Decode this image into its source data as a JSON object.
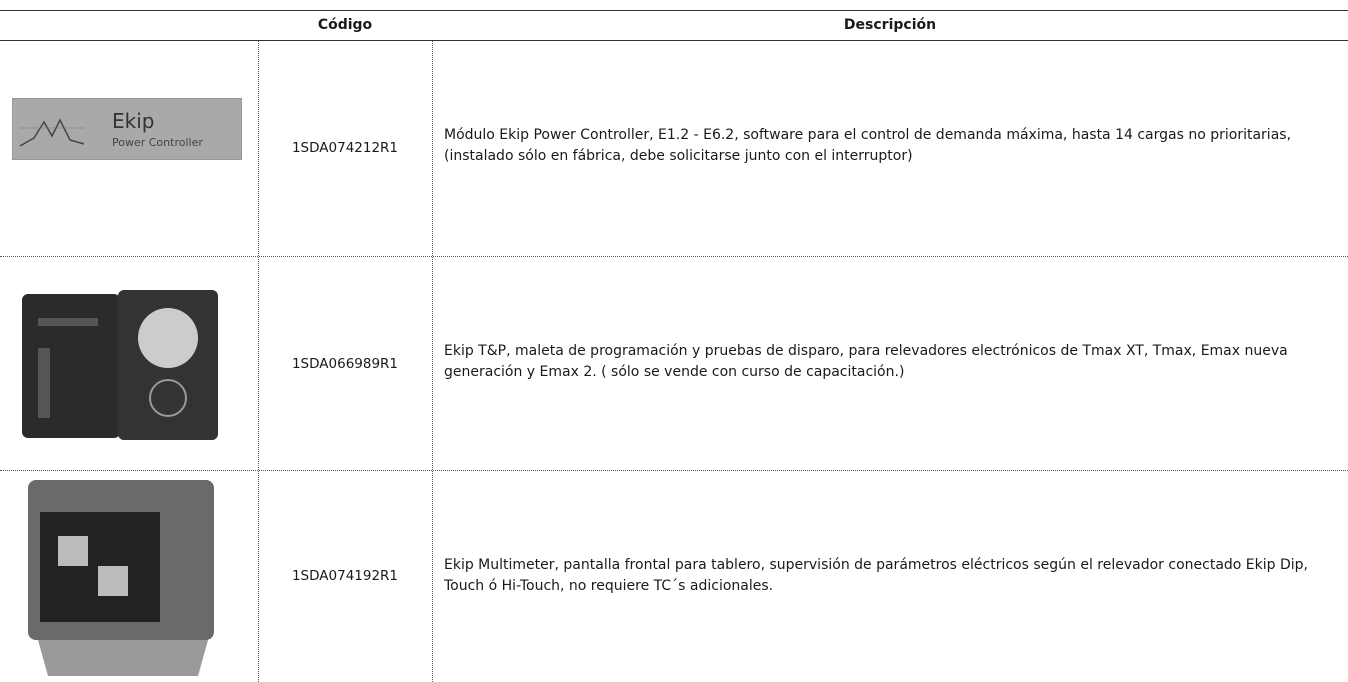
{
  "table": {
    "header": [
      "Código",
      "Descripción"
    ],
    "rows": [
      {
        "image_text": [
          "Ekip",
          "Power Controller"
        ],
        "code": "1SDA074212R1",
        "description": "Módulo Ekip Power Controller, E1.2 - E6.2, software para el control de demanda máxima, hasta 14 cargas no prioritarias, (instalado sólo en fábrica, debe solicitarse junto con el interruptor)"
      },
      {
        "code": "1SDA066989R1",
        "description": "Ekip T&P, maleta de programación y pruebas de disparo, para relevadores electrónicos de Tmax XT, Tmax, Emax nueva generación y Emax 2. ( sólo se vende con curso de capacitación.)"
      },
      {
        "code": "1SDA074192R1",
        "description": "Ekip Multimeter, pantalla frontal para tablero, supervisión de parámetros eléctricos según el relevador conectado Ekip Dip, Touch ó Hi-Touch, no requiere TC´s adicionales."
      }
    ]
  }
}
